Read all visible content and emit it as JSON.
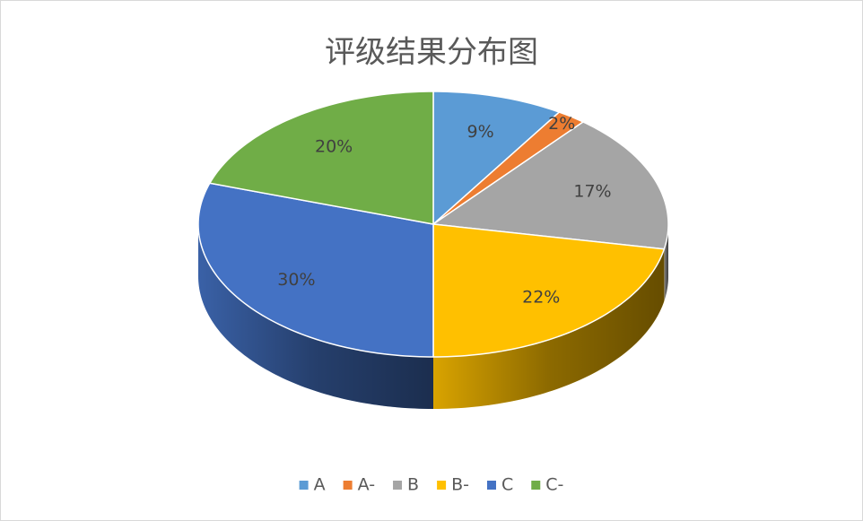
{
  "chart_data": {
    "type": "pie3d",
    "title": "评级结果分布图",
    "categories": [
      "A",
      "A-",
      "B",
      "B-",
      "C",
      "C-"
    ],
    "values": [
      9,
      2,
      17,
      22,
      30,
      20
    ],
    "value_labels": [
      "9%",
      "2%",
      "17%",
      "22%",
      "30%",
      "20%"
    ],
    "colors": [
      "#5b9bd5",
      "#ed7d31",
      "#a5a5a5",
      "#ffc000",
      "#4472c4",
      "#70ad47"
    ],
    "legend": "bottom"
  }
}
